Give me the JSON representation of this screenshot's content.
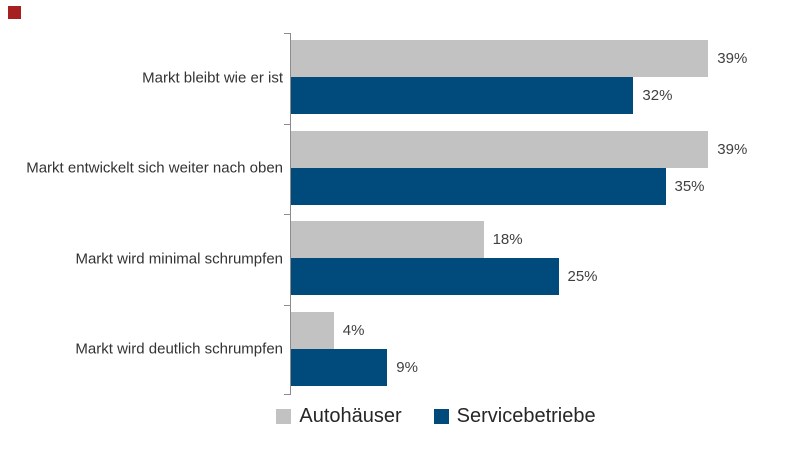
{
  "page": {
    "background": "#ffffff",
    "logo_color": "#a62021"
  },
  "colors": {
    "axis": "#8c8c8c",
    "category_label": "#333333",
    "value_label": "#404040",
    "legend_text": "#262626"
  },
  "chart_data": {
    "type": "bar",
    "orientation": "horizontal",
    "title": "",
    "xlabel": "",
    "ylabel": "",
    "grid": false,
    "data_labels": true,
    "legend_position": "bottom",
    "value_suffix": "%",
    "xlim": [
      0,
      47
    ],
    "categories": [
      "Markt bleibt wie er ist",
      "Markt entwickelt sich weiter nach oben",
      "Markt wird minimal schrumpfen",
      "Markt wird deutlich schrumpfen"
    ],
    "series": [
      {
        "name": "Autohäuser",
        "color": "#c2c2c2",
        "values": [
          39,
          39,
          18,
          4
        ]
      },
      {
        "name": "Servicebetriebe",
        "color": "#004a7c",
        "values": [
          32,
          35,
          25,
          9
        ]
      }
    ]
  }
}
